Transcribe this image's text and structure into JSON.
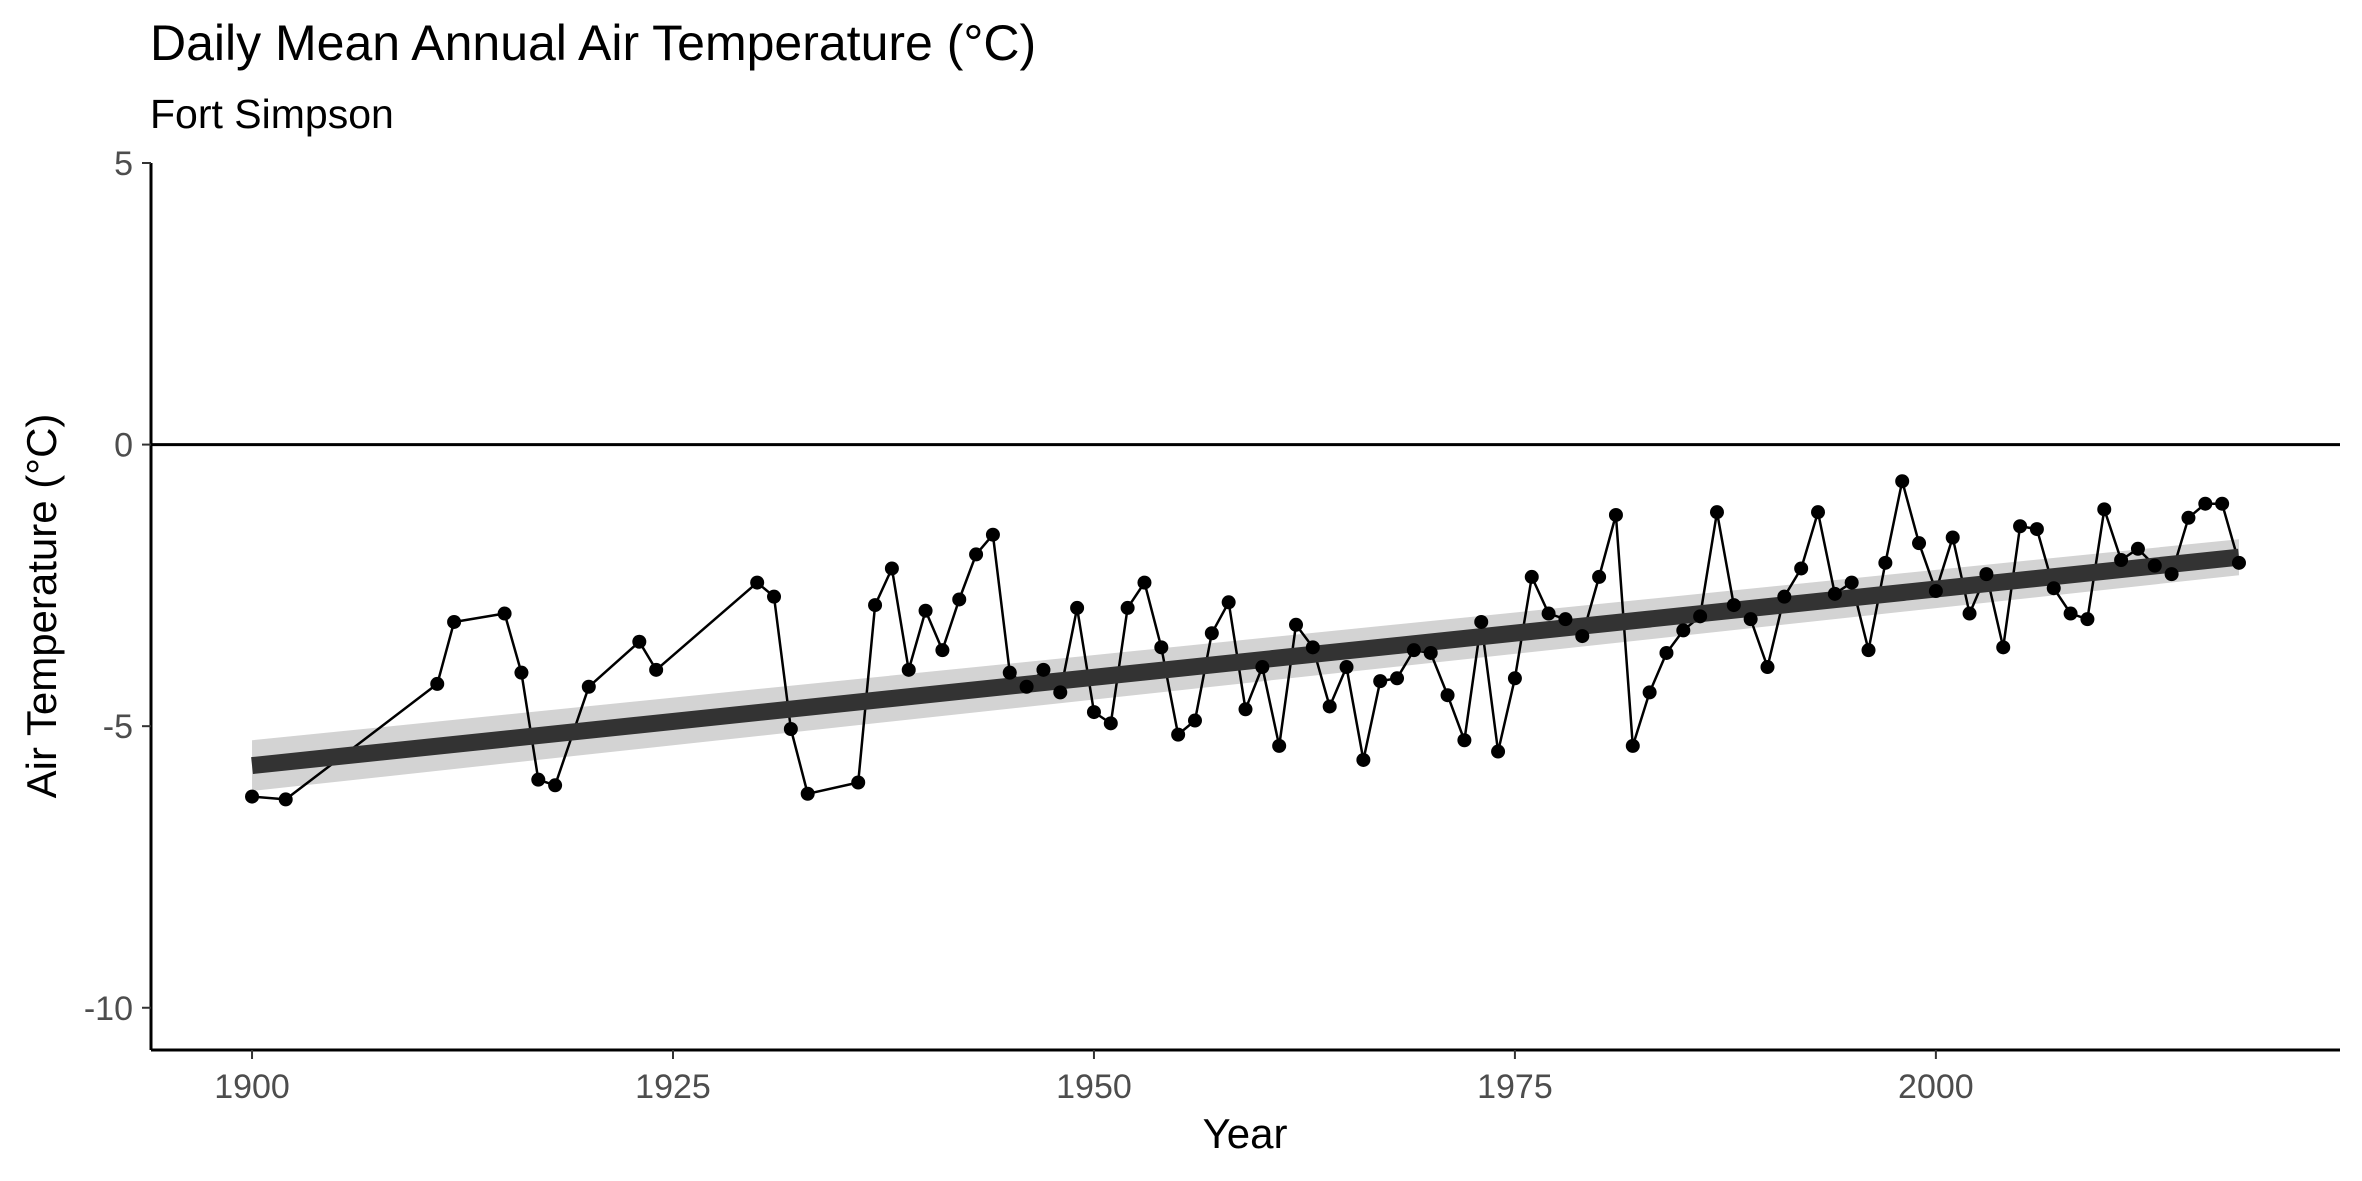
{
  "chart_data": {
    "type": "line",
    "title": "Daily Mean Annual Air Temperature (°C)",
    "subtitle": "Fort Simpson",
    "xlabel": "Year",
    "ylabel": "Air Temperature (°C)",
    "xlim": [
      1894,
      2024
    ],
    "ylim": [
      -10.75,
      5.0
    ],
    "xticks": [
      1900,
      1925,
      1950,
      1975,
      2000
    ],
    "yticks": [
      5,
      0,
      -5,
      -10
    ],
    "xtick_labels": [
      "1900",
      "1925",
      "1950",
      "1975",
      "2000"
    ],
    "ytick_labels": [
      "5",
      "0",
      "-5",
      "-10"
    ],
    "reference_line_y": 0,
    "grid": false,
    "series": [
      {
        "points": [
          [
            1900,
            -6.25
          ],
          [
            1902,
            -6.3
          ],
          [
            1911,
            -4.25
          ],
          [
            1912,
            -3.15
          ],
          [
            1915,
            -3.0
          ],
          [
            1916,
            -4.05
          ],
          [
            1917,
            -5.95
          ],
          [
            1918,
            -6.05
          ],
          [
            1920,
            -4.3
          ],
          [
            1923,
            -3.5
          ],
          [
            1924,
            -4.0
          ],
          [
            1930,
            -2.45
          ],
          [
            1931,
            -2.7
          ],
          [
            1932,
            -5.05
          ],
          [
            1933,
            -6.2
          ],
          [
            1936,
            -6.0
          ],
          [
            1937,
            -2.85
          ],
          [
            1938,
            -2.2
          ],
          [
            1939,
            -4.0
          ],
          [
            1940,
            -2.95
          ],
          [
            1941,
            -3.65
          ],
          [
            1942,
            -2.75
          ],
          [
            1943,
            -1.95
          ],
          [
            1944,
            -1.6
          ],
          [
            1945,
            -4.05
          ],
          [
            1946,
            -4.3
          ],
          [
            1947,
            -4.0
          ],
          [
            1948,
            -4.4
          ],
          [
            1949,
            -2.9
          ],
          [
            1950,
            -4.75
          ],
          [
            1951,
            -4.95
          ],
          [
            1952,
            -2.9
          ],
          [
            1953,
            -2.45
          ],
          [
            1954,
            -3.6
          ],
          [
            1955,
            -5.15
          ],
          [
            1956,
            -4.9
          ],
          [
            1957,
            -3.35
          ],
          [
            1958,
            -2.8
          ],
          [
            1959,
            -4.7
          ],
          [
            1960,
            -3.95
          ],
          [
            1961,
            -5.35
          ],
          [
            1962,
            -3.2
          ],
          [
            1963,
            -3.6
          ],
          [
            1964,
            -4.65
          ],
          [
            1965,
            -3.95
          ],
          [
            1966,
            -5.6
          ],
          [
            1967,
            -4.2
          ],
          [
            1968,
            -4.15
          ],
          [
            1969,
            -3.65
          ],
          [
            1970,
            -3.7
          ],
          [
            1971,
            -4.45
          ],
          [
            1972,
            -5.25
          ],
          [
            1973,
            -3.15
          ],
          [
            1974,
            -5.45
          ],
          [
            1975,
            -4.15
          ],
          [
            1976,
            -2.35
          ],
          [
            1977,
            -3.0
          ],
          [
            1978,
            -3.1
          ],
          [
            1979,
            -3.4
          ],
          [
            1980,
            -2.35
          ],
          [
            1981,
            -1.25
          ],
          [
            1982,
            -5.35
          ],
          [
            1983,
            -4.4
          ],
          [
            1984,
            -3.7
          ],
          [
            1985,
            -3.3
          ],
          [
            1986,
            -3.05
          ],
          [
            1987,
            -1.2
          ],
          [
            1988,
            -2.85
          ],
          [
            1989,
            -3.1
          ],
          [
            1990,
            -3.95
          ],
          [
            1991,
            -2.7
          ],
          [
            1992,
            -2.2
          ],
          [
            1993,
            -1.2
          ],
          [
            1994,
            -2.65
          ],
          [
            1995,
            -2.45
          ],
          [
            1996,
            -3.65
          ],
          [
            1997,
            -2.1
          ],
          [
            1998,
            -0.65
          ],
          [
            1999,
            -1.75
          ],
          [
            2000,
            -2.6
          ],
          [
            2001,
            -1.65
          ],
          [
            2002,
            -3.0
          ],
          [
            2003,
            -2.3
          ],
          [
            2004,
            -3.6
          ],
          [
            2005,
            -1.45
          ],
          [
            2006,
            -1.5
          ],
          [
            2007,
            -2.55
          ],
          [
            2008,
            -3.0
          ],
          [
            2009,
            -3.1
          ],
          [
            2010,
            -1.15
          ],
          [
            2011,
            -2.05
          ],
          [
            2012,
            -1.85
          ],
          [
            2013,
            -2.15
          ],
          [
            2014,
            -2.3
          ],
          [
            2015,
            -1.3
          ],
          [
            2016,
            -1.05
          ],
          [
            2017,
            -1.05
          ],
          [
            2018,
            -2.1
          ]
        ],
        "color": "#000000"
      },
      {
        "type": "linear-trend",
        "x": [
          1900,
          2018
        ],
        "y": [
          -5.7,
          -2.0
        ],
        "ci_halfwidth": [
          0.45,
          0.32
        ],
        "line_color": "#333333",
        "band_color": "#d3d3d3"
      }
    ]
  }
}
